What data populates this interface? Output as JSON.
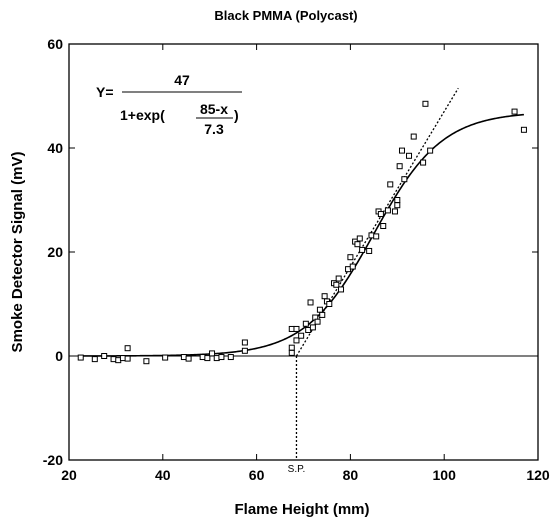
{
  "chart_data": {
    "type": "scatter",
    "title": "Black PMMA (Polycast)",
    "xlabel": "Flame Height (mm)",
    "ylabel": "Smoke Detector Signal (mV)",
    "xlim": [
      20,
      120
    ],
    "ylim": [
      -20,
      60
    ],
    "xticks": [
      20,
      40,
      60,
      80,
      100,
      120
    ],
    "yticks": [
      -20,
      0,
      20,
      40,
      60
    ],
    "grid": false,
    "equation": {
      "lhs": "Y=",
      "numerator": "47",
      "denominator_prefix": "1+exp(",
      "inner_numerator": "85-x",
      "inner_denominator": "7.3",
      "denominator_suffix": ")"
    },
    "smoke_point": {
      "label": "S.P.",
      "x": 68.5
    },
    "fit_curve": {
      "model": "47/(1+exp((85-x)/7.3))",
      "a": 47,
      "x0": 85,
      "s": 7.3,
      "x_range": [
        22,
        117
      ]
    },
    "tangent_line": {
      "from": [
        68.5,
        0
      ],
      "to": [
        103,
        51.5
      ]
    },
    "series": [
      {
        "marker": "square",
        "points": [
          [
            22.5,
            -0.3
          ],
          [
            25.5,
            -0.6
          ],
          [
            27.5,
            0.0
          ],
          [
            29.5,
            -0.6
          ],
          [
            30.5,
            -0.8
          ],
          [
            31.5,
            -0.4
          ],
          [
            32.5,
            1.5
          ],
          [
            32.5,
            -0.5
          ],
          [
            36.5,
            -1.0
          ],
          [
            40.5,
            -0.3
          ],
          [
            44.5,
            -0.2
          ],
          [
            45.5,
            -0.5
          ],
          [
            48.5,
            -0.2
          ],
          [
            49.5,
            -0.4
          ],
          [
            50.5,
            0.5
          ],
          [
            51.5,
            -0.4
          ],
          [
            52.5,
            -0.2
          ],
          [
            54.5,
            -0.2
          ],
          [
            57.5,
            2.6
          ],
          [
            57.5,
            1.0
          ],
          [
            67.5,
            5.2
          ],
          [
            67.5,
            1.6
          ],
          [
            67.5,
            0.6
          ],
          [
            68.5,
            3.0
          ],
          [
            68.5,
            5.2
          ],
          [
            69.5,
            3.9
          ],
          [
            70.5,
            6.2
          ],
          [
            71.0,
            5.0
          ],
          [
            71.5,
            10.3
          ],
          [
            72.0,
            5.5
          ],
          [
            72.5,
            7.4
          ],
          [
            73.0,
            6.6
          ],
          [
            73.5,
            8.9
          ],
          [
            74.0,
            7.9
          ],
          [
            74.5,
            11.5
          ],
          [
            75.0,
            10.5
          ],
          [
            75.5,
            10.0
          ],
          [
            76.5,
            14.0
          ],
          [
            77.0,
            13.7
          ],
          [
            77.5,
            14.9
          ],
          [
            78.0,
            12.8
          ],
          [
            79.5,
            16.7
          ],
          [
            80.0,
            19.0
          ],
          [
            80.5,
            17.2
          ],
          [
            81.0,
            22.0
          ],
          [
            81.5,
            21.5
          ],
          [
            82.0,
            22.6
          ],
          [
            82.5,
            20.4
          ],
          [
            84.0,
            20.2
          ],
          [
            84.5,
            23.2
          ],
          [
            85.5,
            23.0
          ],
          [
            86.0,
            27.8
          ],
          [
            86.5,
            27.3
          ],
          [
            87.0,
            25.0
          ],
          [
            88.0,
            28.0
          ],
          [
            88.5,
            33.0
          ],
          [
            89.5,
            27.8
          ],
          [
            90.0,
            30.0
          ],
          [
            90.0,
            29.0
          ],
          [
            90.5,
            36.5
          ],
          [
            91.0,
            39.5
          ],
          [
            91.5,
            34.0
          ],
          [
            92.5,
            38.5
          ],
          [
            93.5,
            42.2
          ],
          [
            95.5,
            37.2
          ],
          [
            96.0,
            48.5
          ],
          [
            97.0,
            39.5
          ],
          [
            115.0,
            47.0
          ],
          [
            117.0,
            43.5
          ]
        ]
      }
    ]
  }
}
